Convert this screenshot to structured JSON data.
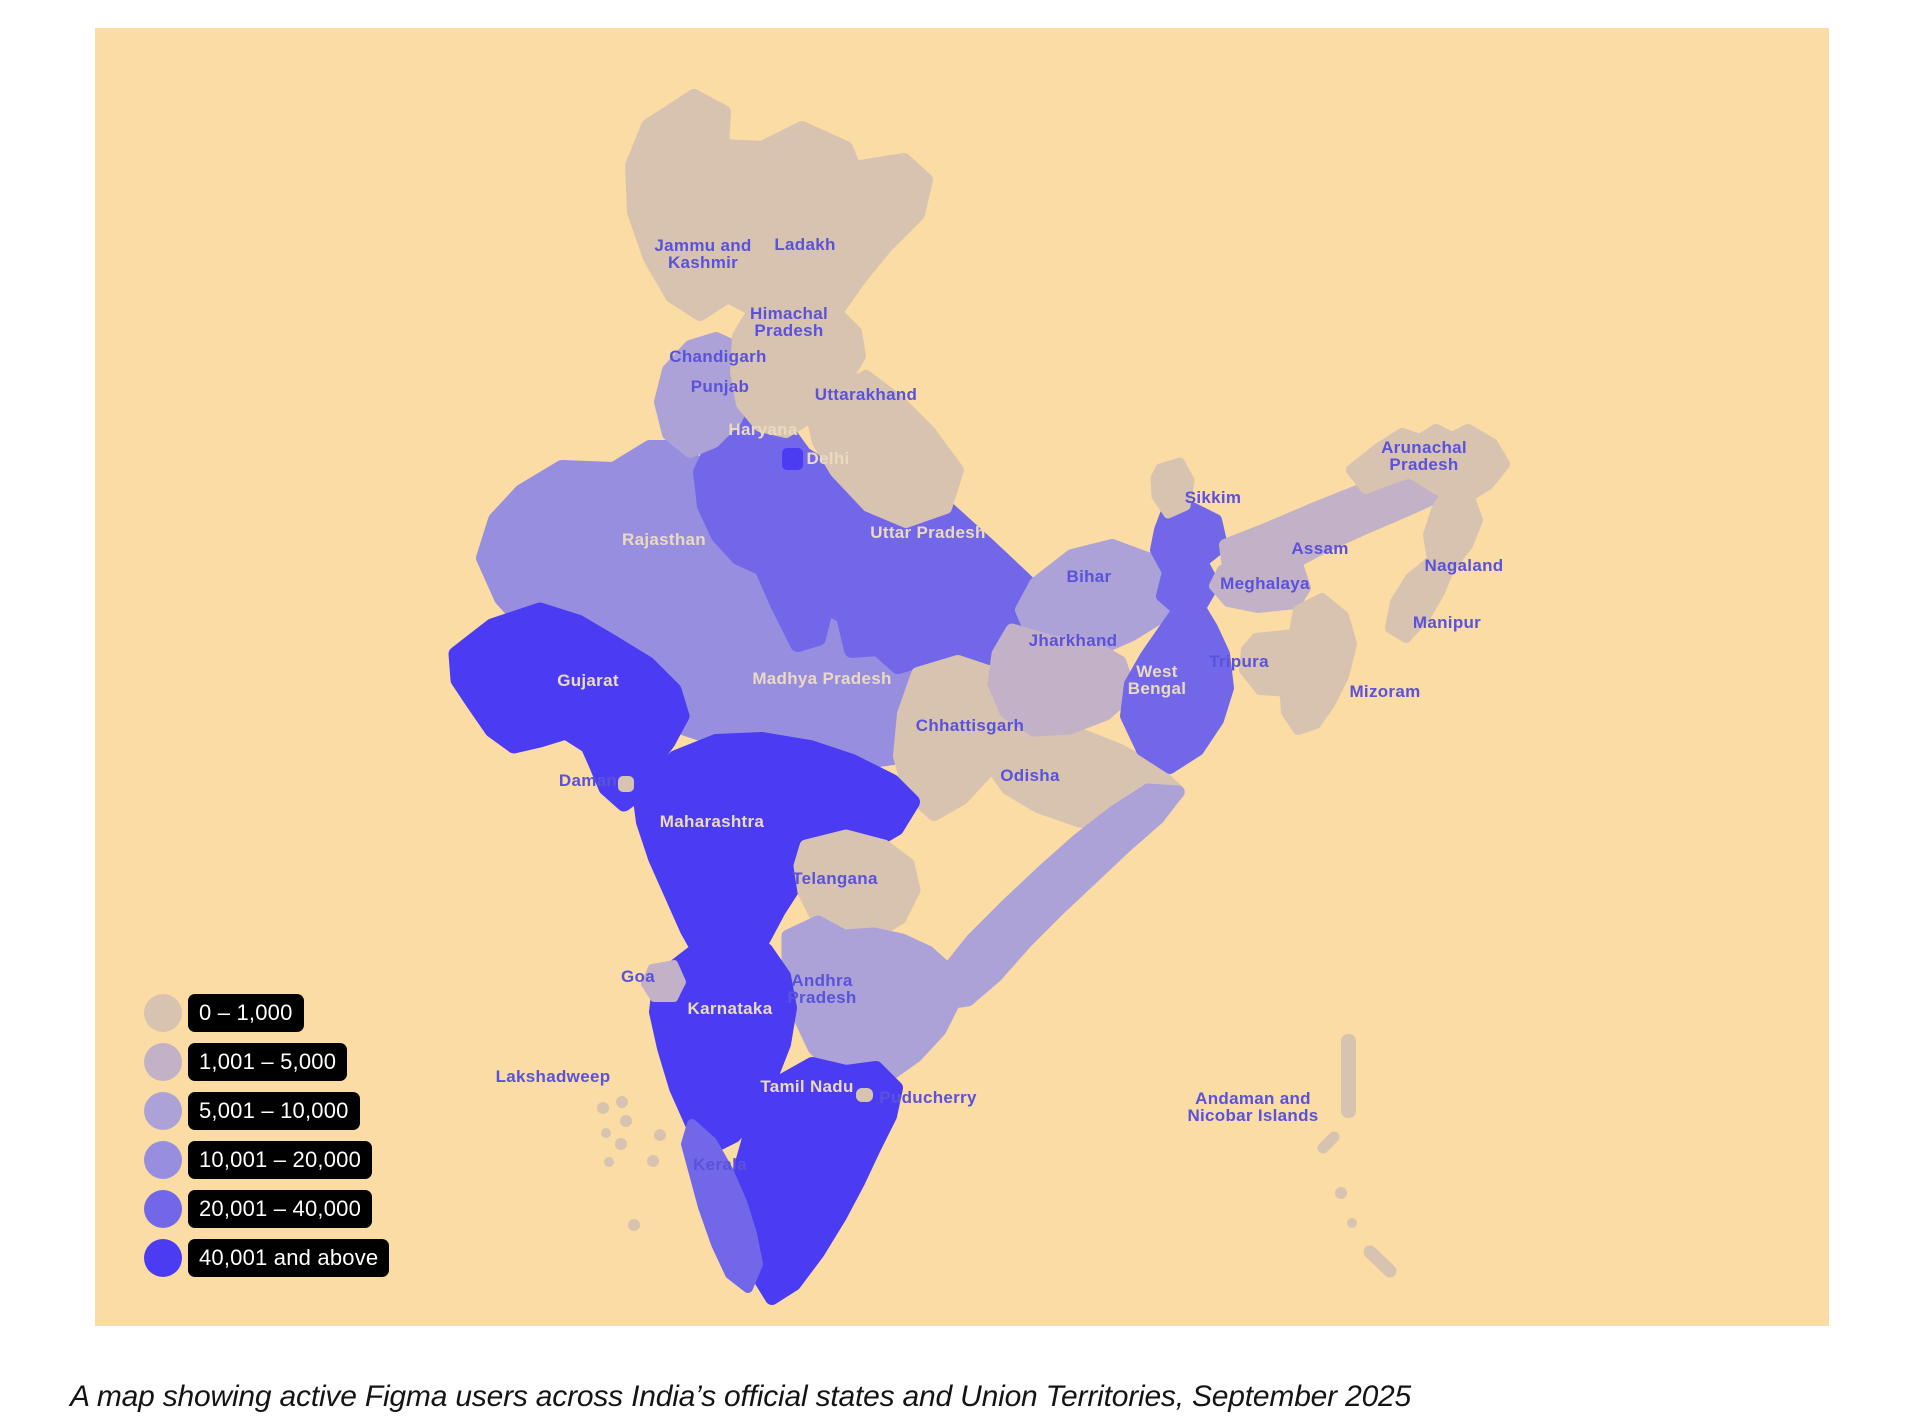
{
  "map": {
    "background_color": "#FADCA4",
    "page_background": "#FFFFFF",
    "legend": {
      "pill_background": "#000000",
      "pill_text_color": "#FFFFFF",
      "items": [
        {
          "label": "0 – 1,000",
          "color": "#D8C3B1"
        },
        {
          "label": "1,001 – 5,000",
          "color": "#C2B1C7"
        },
        {
          "label": "5,001 – 10,000",
          "color": "#ACA2D7"
        },
        {
          "label": "10,001 – 20,000",
          "color": "#978EE0"
        },
        {
          "label": "20,001 – 40,000",
          "color": "#7267E9"
        },
        {
          "label": "40,001 and above",
          "color": "#4B3CF3"
        }
      ]
    },
    "label_colors": {
      "on_light": "#5A52DB",
      "on_dark": "#EADAC0"
    },
    "states": [
      {
        "id": "rajasthan",
        "name": "Rajasthan",
        "bucket": 4,
        "label_on": "dark"
      },
      {
        "id": "madhya-pradesh",
        "name": "Madhya Pradesh",
        "bucket": 4,
        "label_on": "dark"
      },
      {
        "id": "haryana",
        "name": "Haryana",
        "bucket": 5,
        "label_on": "dark"
      },
      {
        "id": "uttar-pradesh",
        "name": "Uttar Pradesh",
        "bucket": 5,
        "label_on": "dark"
      },
      {
        "id": "punjab",
        "name": "Punjab",
        "bucket": 3,
        "label_on": "light"
      },
      {
        "id": "bihar",
        "name": "Bihar",
        "bucket": 3,
        "label_on": "light"
      },
      {
        "id": "jammu-kashmir",
        "name": "Jammu and Kashmir",
        "lines": [
          "Jammu and",
          "Kashmir"
        ],
        "bucket": 1,
        "label_on": "light"
      },
      {
        "id": "ladakh",
        "name": "Ladakh",
        "bucket": 1,
        "label_on": "light"
      },
      {
        "id": "himachal-pradesh",
        "name": "Himachal Pradesh",
        "lines": [
          "Himachal",
          "Pradesh"
        ],
        "bucket": 1,
        "label_on": "light"
      },
      {
        "id": "chandigarh",
        "name": "Chandigarh",
        "bucket": null,
        "label_on": "light"
      },
      {
        "id": "uttarakhand",
        "name": "Uttarakhand",
        "bucket": 1,
        "label_on": "light"
      },
      {
        "id": "chhattisgarh",
        "name": "Chhattisgarh",
        "bucket": 1,
        "label_on": "light"
      },
      {
        "id": "odisha",
        "name": "Odisha",
        "bucket": 1,
        "label_on": "light"
      },
      {
        "id": "jharkhand",
        "name": "Jharkhand",
        "bucket": 2,
        "label_on": "light"
      },
      {
        "id": "west-bengal",
        "name": "West Bengal",
        "lines": [
          "West",
          "Bengal"
        ],
        "bucket": 5,
        "label_on": "dark"
      },
      {
        "id": "sikkim",
        "name": "Sikkim",
        "bucket": 1,
        "label_on": "light"
      },
      {
        "id": "assam",
        "name": "Assam",
        "bucket": 2,
        "label_on": "light"
      },
      {
        "id": "meghalaya",
        "name": "Meghalaya",
        "bucket": 2,
        "label_on": "light"
      },
      {
        "id": "arunachal-pradesh",
        "name": "Arunachal Pradesh",
        "lines": [
          "Arunachal",
          "Pradesh"
        ],
        "bucket": 1,
        "label_on": "light"
      },
      {
        "id": "nagaland",
        "name": "Nagaland",
        "bucket": 1,
        "label_on": "light"
      },
      {
        "id": "manipur",
        "name": "Manipur",
        "bucket": 1,
        "label_on": "light"
      },
      {
        "id": "mizoram",
        "name": "Mizoram",
        "bucket": 1,
        "label_on": "light"
      },
      {
        "id": "tripura",
        "name": "Tripura",
        "bucket": 1,
        "label_on": "light"
      },
      {
        "id": "gujarat",
        "name": "Gujarat",
        "bucket": 6,
        "label_on": "dark"
      },
      {
        "id": "maharashtra",
        "name": "Maharashtra",
        "bucket": 6,
        "label_on": "dark"
      },
      {
        "id": "telangana",
        "name": "Telangana",
        "bucket": 1,
        "label_on": "light"
      },
      {
        "id": "andhra-pradesh",
        "name": "Andhra Pradesh",
        "lines": [
          "Andhra",
          "Pradesh"
        ],
        "bucket": 3,
        "label_on": "light"
      },
      {
        "id": "karnataka",
        "name": "Karnataka",
        "bucket": 6,
        "label_on": "dark"
      },
      {
        "id": "tamil-nadu",
        "name": "Tamil Nadu",
        "bucket": 6,
        "label_on": "dark"
      },
      {
        "id": "kerala",
        "name": "Kerala",
        "bucket": 5,
        "label_on": "light"
      },
      {
        "id": "goa",
        "name": "Goa",
        "bucket": 2,
        "label_on": "light"
      },
      {
        "id": "daman",
        "name": "Daman",
        "bucket": 1,
        "label_on": "light"
      },
      {
        "id": "delhi",
        "name": "Delhi",
        "bucket": 6,
        "label_on": "dark"
      },
      {
        "id": "puducherry",
        "name": "Puducherry",
        "bucket": 1,
        "label_on": "light"
      },
      {
        "id": "lakshadweep",
        "name": "Lakshadweep",
        "bucket": 1,
        "label_on": "light"
      },
      {
        "id": "andaman-nicobar",
        "name": "Andaman and Nicobar Islands",
        "lines": [
          "Andaman and",
          "Nicobar Islands"
        ],
        "bucket": 1,
        "label_on": "light"
      }
    ]
  },
  "caption": "A map showing  active Figma users across India’s official states and Union Territories, September 2025"
}
